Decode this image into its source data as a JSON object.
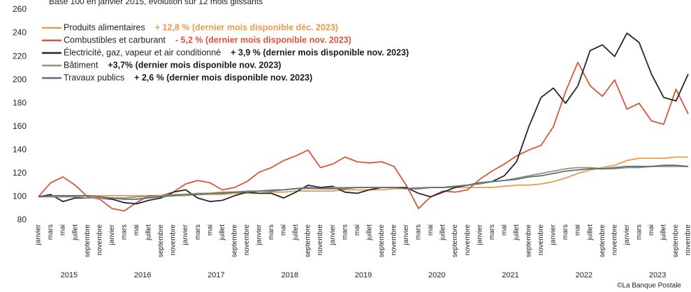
{
  "chart_data": {
    "type": "line",
    "subtitle": "Base 100 en janvier 2015, évolution sur 12 mois glissants",
    "source": "©La Banque Postale",
    "categories": [
      "janvier",
      "mars",
      "mai",
      "juillet",
      "septembre",
      "novembre",
      "janvier",
      "mars",
      "mai",
      "juillet",
      "septembre",
      "novembre",
      "janvier",
      "mars",
      "mai",
      "juillet",
      "septembre",
      "novembre",
      "janvier",
      "mars",
      "mai",
      "juillet",
      "septembre",
      "novembre",
      "janvier",
      "mars",
      "mai",
      "juillet",
      "septembre",
      "novembre",
      "janvier",
      "mars",
      "mai",
      "juillet",
      "septembre",
      "novembre",
      "janvier",
      "mars",
      "mai",
      "juillet",
      "septembre",
      "novembre",
      "janvier",
      "mars",
      "mai",
      "juillet",
      "septembre",
      "novembre",
      "janvier",
      "mars",
      "mai",
      "juillet",
      "septembre",
      "novembre"
    ],
    "years": [
      "2015",
      "2016",
      "2017",
      "2018",
      "2019",
      "2020",
      "2021",
      "2022",
      "2023"
    ],
    "ylim": [
      80,
      260
    ],
    "yticks": [
      80,
      100,
      120,
      140,
      160,
      180,
      200,
      220,
      240,
      260
    ],
    "series": [
      {
        "name": "Produits alimentaires",
        "note": "+ 12,8 % (dernier mois disponible déc. 2023)",
        "color": "#ec9a4c",
        "note_color": "#ec9a4c",
        "values": [
          100,
          100,
          100,
          100,
          101,
          101,
          101,
          101,
          101,
          101,
          101,
          101,
          101,
          102,
          102,
          102,
          103,
          103,
          103,
          104,
          104,
          105,
          105,
          105,
          105,
          106,
          106,
          106,
          106,
          107,
          107,
          108,
          108,
          108,
          108,
          108,
          108,
          108,
          109,
          110,
          110,
          111,
          113,
          116,
          120,
          123,
          125,
          127,
          131,
          133,
          133,
          133,
          134,
          134
        ]
      },
      {
        "name": "Combustibles et carburant",
        "note": "- 5,2 % (dernier mois disponible nov. 2023)",
        "color": "#d9553a",
        "note_color": "#d9553a",
        "values": [
          100,
          112,
          117,
          110,
          100,
          98,
          90,
          88,
          95,
          101,
          101,
          104,
          111,
          114,
          112,
          106,
          108,
          113,
          121,
          125,
          131,
          135,
          140,
          125,
          128,
          134,
          130,
          129,
          130,
          126,
          110,
          90,
          100,
          105,
          104,
          106,
          115,
          122,
          128,
          135,
          140,
          144,
          160,
          190,
          215,
          195,
          186,
          200,
          175,
          180,
          165,
          162,
          192,
          171
        ]
      },
      {
        "name": "Électricité, gaz, vapeur et air conditionné",
        "note": "+ 3,9 % (dernier mois disponible nov. 2023)",
        "color": "#262626",
        "note_color": "#1a1a1a",
        "values": [
          100,
          102,
          96,
          99,
          99,
          99,
          98,
          95,
          94,
          97,
          99,
          104,
          106,
          99,
          96,
          97,
          101,
          104,
          103,
          103,
          99,
          104,
          110,
          108,
          109,
          104,
          103,
          106,
          108,
          108,
          108,
          103,
          100,
          104,
          108,
          110,
          112,
          113,
          118,
          130,
          160,
          185,
          193,
          180,
          195,
          225,
          230,
          220,
          240,
          232,
          205,
          185,
          182,
          205
        ]
      },
      {
        "name": "Bâtiment",
        "note": "+3,7% (dernier mois disponible nov. 2023)",
        "color": "#8b9a74",
        "note_color": "#1a1a1a",
        "values": [
          100,
          100,
          100,
          100,
          99,
          99,
          99,
          99,
          100,
          100,
          101,
          102,
          102,
          103,
          103,
          104,
          104,
          105,
          105,
          106,
          106,
          107,
          107,
          107,
          108,
          108,
          108,
          108,
          108,
          108,
          107,
          107,
          108,
          108,
          109,
          110,
          111,
          113,
          114,
          116,
          118,
          120,
          122,
          124,
          125,
          125,
          124,
          124,
          125,
          125,
          126,
          126,
          126,
          126
        ]
      },
      {
        "name": "Travaux publics",
        "note": "+ 2,6 % (dernier mois disponible nov. 2023)",
        "color": "#5d6d80",
        "note_color": "#1a1a1a",
        "values": [
          100,
          101,
          101,
          101,
          101,
          100,
          99,
          98,
          98,
          99,
          100,
          101,
          102,
          102,
          103,
          103,
          104,
          104,
          105,
          105,
          106,
          107,
          108,
          107,
          107,
          107,
          108,
          108,
          108,
          108,
          107,
          107,
          108,
          108,
          109,
          110,
          112,
          113,
          114,
          115,
          117,
          118,
          120,
          122,
          123,
          124,
          124,
          125,
          126,
          126,
          126,
          127,
          127,
          126
        ]
      }
    ]
  }
}
